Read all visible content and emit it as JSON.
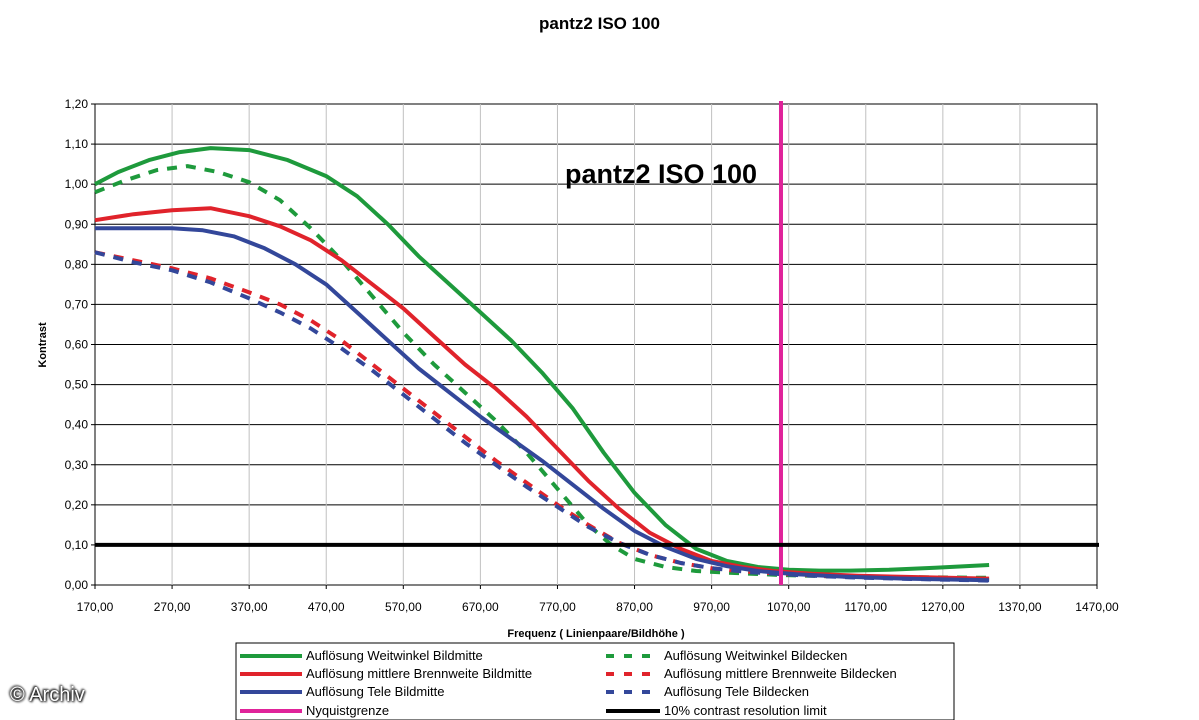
{
  "page": {
    "title": "pantz2 ISO 100",
    "credit": "© Archiv"
  },
  "chart_data": {
    "type": "line",
    "title": "pantz2 ISO 100",
    "inner_title": "pantz2 ISO 100",
    "xlabel": "Frequenz ( Linienpaare/Bildhöhe )",
    "ylabel": "Kontrast",
    "xlim": [
      170,
      1470
    ],
    "ylim": [
      0,
      1.2
    ],
    "x_ticks": [
      "170,00",
      "270,00",
      "370,00",
      "470,00",
      "570,00",
      "670,00",
      "770,00",
      "870,00",
      "970,00",
      "1070,00",
      "1170,00",
      "1270,00",
      "1370,00",
      "1470,00"
    ],
    "y_ticks": [
      "0,00",
      "0,10",
      "0,20",
      "0,30",
      "0,40",
      "0,50",
      "0,60",
      "0,70",
      "0,80",
      "0,90",
      "1,00",
      "1,10",
      "1,20"
    ],
    "grid": true,
    "legend_position": "bottom",
    "series": [
      {
        "name": "Auflösung Weitwinkel Bildmitte",
        "color": "#1e9a3c",
        "dash": false,
        "points": [
          [
            170,
            1.0
          ],
          [
            200,
            1.03
          ],
          [
            240,
            1.06
          ],
          [
            280,
            1.08
          ],
          [
            320,
            1.09
          ],
          [
            370,
            1.085
          ],
          [
            420,
            1.06
          ],
          [
            470,
            1.02
          ],
          [
            510,
            0.97
          ],
          [
            550,
            0.9
          ],
          [
            590,
            0.82
          ],
          [
            630,
            0.75
          ],
          [
            670,
            0.68
          ],
          [
            710,
            0.61
          ],
          [
            750,
            0.53
          ],
          [
            790,
            0.44
          ],
          [
            830,
            0.33
          ],
          [
            870,
            0.23
          ],
          [
            910,
            0.15
          ],
          [
            950,
            0.09
          ],
          [
            990,
            0.06
          ],
          [
            1030,
            0.045
          ],
          [
            1070,
            0.038
          ],
          [
            1110,
            0.036
          ],
          [
            1150,
            0.036
          ],
          [
            1200,
            0.038
          ],
          [
            1260,
            0.043
          ],
          [
            1330,
            0.05
          ]
        ]
      },
      {
        "name": "Auflösung Weitwinkel Bildecken",
        "color": "#1e9a3c",
        "dash": true,
        "points": [
          [
            170,
            0.98
          ],
          [
            210,
            1.01
          ],
          [
            250,
            1.035
          ],
          [
            290,
            1.045
          ],
          [
            330,
            1.03
          ],
          [
            370,
            1.005
          ],
          [
            410,
            0.96
          ],
          [
            450,
            0.89
          ],
          [
            490,
            0.81
          ],
          [
            530,
            0.72
          ],
          [
            570,
            0.63
          ],
          [
            610,
            0.55
          ],
          [
            650,
            0.48
          ],
          [
            690,
            0.41
          ],
          [
            730,
            0.33
          ],
          [
            770,
            0.24
          ],
          [
            810,
            0.15
          ],
          [
            840,
            0.1
          ],
          [
            870,
            0.065
          ],
          [
            910,
            0.045
          ],
          [
            950,
            0.035
          ],
          [
            1000,
            0.03
          ],
          [
            1060,
            0.025
          ],
          [
            1120,
            0.022
          ],
          [
            1200,
            0.02
          ],
          [
            1330,
            0.018
          ]
        ]
      },
      {
        "name": "Auflösung mittlere Brennweite Bildmitte",
        "color": "#e0232b",
        "dash": false,
        "points": [
          [
            170,
            0.91
          ],
          [
            220,
            0.925
          ],
          [
            270,
            0.935
          ],
          [
            320,
            0.94
          ],
          [
            370,
            0.92
          ],
          [
            410,
            0.895
          ],
          [
            450,
            0.86
          ],
          [
            490,
            0.81
          ],
          [
            530,
            0.75
          ],
          [
            570,
            0.69
          ],
          [
            610,
            0.62
          ],
          [
            650,
            0.55
          ],
          [
            690,
            0.49
          ],
          [
            730,
            0.42
          ],
          [
            770,
            0.34
          ],
          [
            810,
            0.26
          ],
          [
            850,
            0.19
          ],
          [
            890,
            0.13
          ],
          [
            930,
            0.09
          ],
          [
            970,
            0.06
          ],
          [
            1010,
            0.045
          ],
          [
            1050,
            0.035
          ],
          [
            1100,
            0.028
          ],
          [
            1160,
            0.023
          ],
          [
            1230,
            0.02
          ],
          [
            1330,
            0.016
          ]
        ]
      },
      {
        "name": "Auflösung mittlere Brennweite Bildecken",
        "color": "#e0232b",
        "dash": true,
        "points": [
          [
            170,
            0.83
          ],
          [
            220,
            0.81
          ],
          [
            270,
            0.79
          ],
          [
            320,
            0.765
          ],
          [
            370,
            0.73
          ],
          [
            410,
            0.7
          ],
          [
            450,
            0.66
          ],
          [
            490,
            0.61
          ],
          [
            530,
            0.55
          ],
          [
            570,
            0.49
          ],
          [
            610,
            0.43
          ],
          [
            650,
            0.37
          ],
          [
            690,
            0.31
          ],
          [
            730,
            0.255
          ],
          [
            770,
            0.2
          ],
          [
            810,
            0.15
          ],
          [
            850,
            0.105
          ],
          [
            890,
            0.075
          ],
          [
            930,
            0.055
          ],
          [
            970,
            0.042
          ],
          [
            1010,
            0.034
          ],
          [
            1060,
            0.028
          ],
          [
            1120,
            0.022
          ],
          [
            1200,
            0.018
          ],
          [
            1330,
            0.013
          ]
        ]
      },
      {
        "name": "Auflösung Tele Bildmitte",
        "color": "#33479a",
        "dash": false,
        "points": [
          [
            170,
            0.89
          ],
          [
            220,
            0.89
          ],
          [
            270,
            0.89
          ],
          [
            310,
            0.885
          ],
          [
            350,
            0.87
          ],
          [
            390,
            0.84
          ],
          [
            430,
            0.8
          ],
          [
            470,
            0.75
          ],
          [
            510,
            0.68
          ],
          [
            550,
            0.61
          ],
          [
            590,
            0.54
          ],
          [
            630,
            0.48
          ],
          [
            670,
            0.42
          ],
          [
            710,
            0.365
          ],
          [
            750,
            0.31
          ],
          [
            790,
            0.25
          ],
          [
            830,
            0.19
          ],
          [
            870,
            0.135
          ],
          [
            910,
            0.095
          ],
          [
            950,
            0.065
          ],
          [
            990,
            0.047
          ],
          [
            1030,
            0.035
          ],
          [
            1080,
            0.027
          ],
          [
            1140,
            0.021
          ],
          [
            1220,
            0.016
          ],
          [
            1330,
            0.012
          ]
        ]
      },
      {
        "name": "Auflösung Tele Bildecken",
        "color": "#33479a",
        "dash": true,
        "points": [
          [
            170,
            0.83
          ],
          [
            220,
            0.805
          ],
          [
            270,
            0.785
          ],
          [
            320,
            0.755
          ],
          [
            370,
            0.715
          ],
          [
            410,
            0.68
          ],
          [
            450,
            0.64
          ],
          [
            490,
            0.59
          ],
          [
            530,
            0.535
          ],
          [
            570,
            0.475
          ],
          [
            610,
            0.415
          ],
          [
            650,
            0.355
          ],
          [
            690,
            0.3
          ],
          [
            730,
            0.245
          ],
          [
            770,
            0.195
          ],
          [
            810,
            0.145
          ],
          [
            850,
            0.105
          ],
          [
            890,
            0.075
          ],
          [
            930,
            0.055
          ],
          [
            970,
            0.042
          ],
          [
            1020,
            0.032
          ],
          [
            1080,
            0.025
          ],
          [
            1150,
            0.019
          ],
          [
            1230,
            0.015
          ],
          [
            1330,
            0.011
          ]
        ]
      }
    ],
    "reference_lines": [
      {
        "name": "Nyquistgrenze",
        "color": "#e0239a",
        "orientation": "vertical",
        "value": 1060
      },
      {
        "name": "10% contrast resolution limit",
        "color": "#000000",
        "orientation": "horizontal",
        "value": 0.1
      }
    ]
  }
}
